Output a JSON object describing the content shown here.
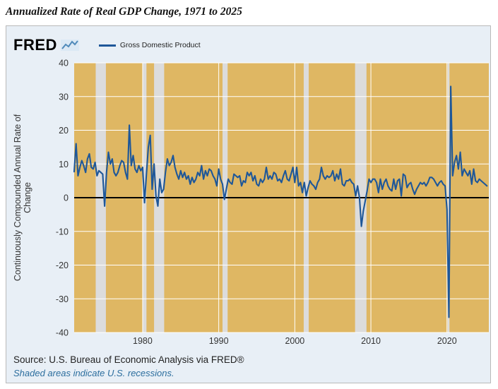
{
  "title": "Annualized Rate of Real GDP Change, 1971 to 2025",
  "header": {
    "logo_text": "FRED",
    "logo_icon": "fred-sparkline-chart-icon",
    "legend_label": "Gross Domestic Product"
  },
  "footer": {
    "source": "Source: U.S. Bureau of Economic Analysis via FRED®",
    "note": "Shaded areas indicate U.S. recessions."
  },
  "chart_data": {
    "type": "line",
    "title": "Annualized Rate of Real GDP Change, 1971 to 2025",
    "xlabel": "",
    "ylabel": "Continuously Compounded Annual Rate of Change",
    "ylabel_lines": [
      "Continuously Compounded Annual Rate of",
      "Change"
    ],
    "frequency": "quarterly",
    "x_start": 1971.0,
    "x_step": 0.25,
    "xlim": [
      1971.0,
      2025.5
    ],
    "ylim": [
      -40,
      40
    ],
    "y_ticks": [
      40,
      30,
      20,
      10,
      0,
      -10,
      -20,
      -30,
      -40
    ],
    "x_ticks": [
      1980,
      1990,
      2000,
      2010,
      2020
    ],
    "grid": true,
    "legend_position": "top-left",
    "series": [
      {
        "name": "Gross Domestic Product",
        "color": "#1e5799",
        "values": [
          7.7,
          16,
          6.5,
          9,
          11,
          9.5,
          7.5,
          11.5,
          13,
          9,
          8.5,
          10.5,
          6.5,
          8,
          7.5,
          7,
          -2.5,
          7.5,
          13.5,
          10,
          11.5,
          7.5,
          6.5,
          7.5,
          9.5,
          11,
          10.5,
          7.5,
          5.5,
          21.5,
          9.5,
          12.5,
          8.5,
          7.5,
          9.5,
          8,
          9,
          -1.5,
          7,
          15,
          18.5,
          2.5,
          10,
          0.5,
          -2.5,
          5.5,
          1.5,
          2.5,
          7.5,
          11.5,
          9.5,
          10.5,
          12.5,
          9,
          7,
          5.5,
          8,
          6,
          7.5,
          5.5,
          6.5,
          4,
          6,
          4.5,
          5.5,
          7.5,
          6.5,
          9.5,
          5.5,
          8,
          6.5,
          8.5,
          8,
          6.5,
          5.5,
          3.5,
          8.5,
          5.5,
          4,
          -0.5,
          2.5,
          5.5,
          4.5,
          4,
          7,
          6.5,
          6,
          6.5,
          3.5,
          5,
          4.5,
          7.5,
          6.5,
          7.5,
          5,
          6.5,
          4,
          3.5,
          5.5,
          4.5,
          5.5,
          9,
          5.5,
          6.5,
          5.5,
          7.5,
          7,
          5,
          5.5,
          4.5,
          6.5,
          8,
          5.5,
          5,
          7,
          9,
          4.5,
          9,
          3.5,
          4.5,
          1.5,
          4.5,
          0.5,
          3,
          5,
          4,
          3.5,
          2.5,
          4.5,
          5.5,
          9,
          6.5,
          5.5,
          6.5,
          6,
          6.5,
          8,
          5,
          7,
          5.5,
          8.5,
          4,
          3.5,
          5,
          5,
          5.5,
          4.5,
          4,
          0.5,
          3.5,
          0,
          -8.5,
          -4,
          -1,
          2,
          5.5,
          4.5,
          5.5,
          5.5,
          4.5,
          1.5,
          5.5,
          2.5,
          4.5,
          5.5,
          3.5,
          2.5,
          2,
          5.5,
          2.5,
          5,
          5.5,
          0.5,
          7,
          6.5,
          3,
          4,
          4.5,
          2.5,
          1,
          2.5,
          3.5,
          4.5,
          4,
          4.5,
          3.5,
          4.5,
          6,
          6,
          5.5,
          4.5,
          3.5,
          4.5,
          5,
          4,
          3.5,
          -3.5,
          -35.5,
          33,
          6.5,
          10.5,
          12.5,
          8.5,
          13.5,
          6.5,
          8.5,
          7.5,
          6.5,
          8,
          4,
          8.5,
          5,
          4.5,
          5.5,
          5,
          4.5,
          4,
          3.5
        ]
      }
    ],
    "recessions": [
      [
        1973.83,
        1975.17
      ],
      [
        1980.0,
        1980.5
      ],
      [
        1981.5,
        1982.83
      ],
      [
        1990.5,
        1991.17
      ],
      [
        2001.17,
        2001.83
      ],
      [
        2007.92,
        2009.42
      ],
      [
        2020.08,
        2020.33
      ]
    ],
    "colors": {
      "plot_bg": "#dfb763",
      "recession": "#dcdcdc",
      "grid": "#ffffff",
      "zero_line": "#000000",
      "card_bg": "#e8eff6",
      "card_border": "#b9b9b9",
      "tick_text": "#333333",
      "series": "#1e5799"
    }
  }
}
